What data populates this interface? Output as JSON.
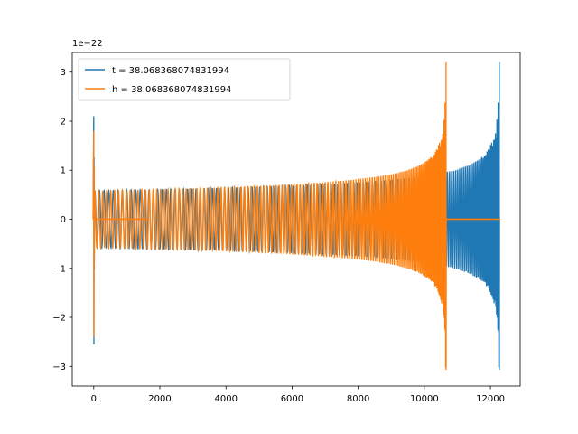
{
  "chart_data": {
    "type": "line",
    "title": "",
    "xlabel": "",
    "ylabel": "",
    "y_offset_label": "1e−22",
    "xlim": [
      -650,
      12900
    ],
    "ylim": [
      -3.4,
      3.4
    ],
    "x_ticks": [
      0,
      2000,
      4000,
      6000,
      8000,
      10000,
      12000
    ],
    "y_ticks": [
      -3,
      -2,
      -1,
      0,
      1,
      2,
      3
    ],
    "grid": false,
    "legend_position": "top-left",
    "series": [
      {
        "name": "t = 38.068368074831994",
        "color": "#1f77b4",
        "signal_start": 0,
        "merger_x": 12270,
        "end_x": 12300,
        "initial_spike_max": 2.1,
        "initial_spike_min": -2.55,
        "flat_until": 0,
        "start_amplitude": 0.58,
        "peak_amplitude_max": 3.2,
        "peak_amplitude_min": -3.07,
        "ringdown_level": 0
      },
      {
        "name": "h = 38.068368074831994",
        "color": "#ff7f0e",
        "signal_start": 0,
        "merger_x": 10660,
        "end_x": 12300,
        "initial_spike_max": 1.8,
        "initial_spike_min": -2.4,
        "flat_segment": [
          50,
          1650
        ],
        "start_amplitude": 0.58,
        "peak_amplitude_max": 3.2,
        "peak_amplitude_min": -3.07,
        "ringdown_level": 0
      }
    ]
  }
}
